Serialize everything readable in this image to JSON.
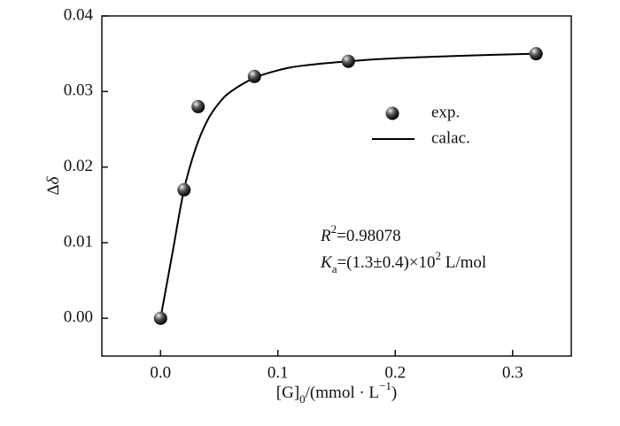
{
  "chart_data": {
    "type": "scatter",
    "x_label": [
      "[G]",
      "0",
      "/(mmol · L",
      "−1",
      ")"
    ],
    "y_label": [
      "Δ",
      "δ"
    ],
    "annotations": [
      [
        "R",
        "2",
        "=0.98078"
      ],
      [
        "K",
        "a",
        "=(1.3±0.4)×10",
        "2",
        " L/mol"
      ]
    ],
    "xlim": [
      -0.05,
      0.35
    ],
    "xticks": [
      {
        "value": 0,
        "label": "0.0"
      },
      0.1,
      0.2,
      0.3
    ],
    "ylim": [
      -0.005,
      0.04
    ],
    "yticks": [
      {
        "value": 0,
        "label": "0.00"
      },
      0.01,
      0.02,
      0.03,
      0.04
    ],
    "series": [
      {
        "name": "exp.",
        "type": "scatter",
        "color": "#000000",
        "x": [
          0,
          0.02,
          0.032,
          0.08,
          0.16,
          0.32
        ],
        "values": [
          0,
          0.017,
          0.028,
          0.032,
          0.034,
          0.035
        ]
      },
      {
        "name": "calac.",
        "type": "line",
        "color": "#000000",
        "x": [
          0,
          0.01,
          0.02,
          0.03,
          0.04,
          0.05,
          0.06,
          0.08,
          0.1,
          0.12,
          0.16,
          0.2,
          0.25,
          0.32
        ],
        "values": [
          0,
          0.0085,
          0.017,
          0.0225,
          0.0262,
          0.0285,
          0.03,
          0.0318,
          0.0328,
          0.0334,
          0.034,
          0.0344,
          0.0347,
          0.035
        ]
      }
    ]
  }
}
